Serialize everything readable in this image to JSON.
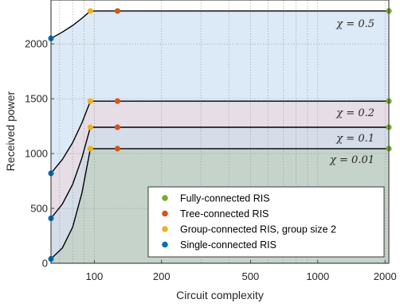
{
  "chart_data": {
    "type": "line",
    "xlabel": "Circuit complexity",
    "ylabel": "Received power",
    "xscale": "log",
    "xlim": [
      64,
      2080
    ],
    "ylim": [
      0,
      2400
    ],
    "xticks": [
      100,
      200,
      500,
      1000,
      2000
    ],
    "yticks": [
      0,
      500,
      1000,
      1500,
      2000
    ],
    "grid": true,
    "legend_position": "lower-right",
    "group_points_x": [
      64,
      72,
      80,
      88,
      96
    ],
    "curves": [
      {
        "chi_label": "χ = 0.5",
        "fully": 2300,
        "single": 2050,
        "group": [
          2050,
          2108,
          2168,
          2233,
          2300
        ]
      },
      {
        "chi_label": "χ = 0.2",
        "fully": 1478,
        "single": 820,
        "group": [
          820,
          946,
          1100,
          1280,
          1478
        ]
      },
      {
        "chi_label": "χ = 0.1",
        "fully": 1240,
        "single": 410,
        "group": [
          410,
          540,
          720,
          960,
          1240
        ]
      },
      {
        "chi_label": "χ = 0.01",
        "fully": 1045,
        "single": 40,
        "group": [
          40,
          140,
          330,
          640,
          1045
        ]
      }
    ],
    "markers": {
      "single_x": 64,
      "group_x": 96,
      "tree_x": 127,
      "fully_x": 2080
    },
    "legend": [
      {
        "label": "Fully-connected RIS",
        "color": "#77ac30"
      },
      {
        "label": "Tree-connected RIS",
        "color": "#d95319"
      },
      {
        "label": "Group-connected RIS, group size 2",
        "color": "#edb120"
      },
      {
        "label": "Single-connected RIS",
        "color": "#0072bd"
      }
    ],
    "colors": {
      "fill_chi05": "#dce9f6",
      "fill_chi02": "#e6dde6",
      "fill_chi01": "#d5dde9",
      "fill_chi001": "#c5d3cb",
      "curve": "#000000"
    }
  }
}
